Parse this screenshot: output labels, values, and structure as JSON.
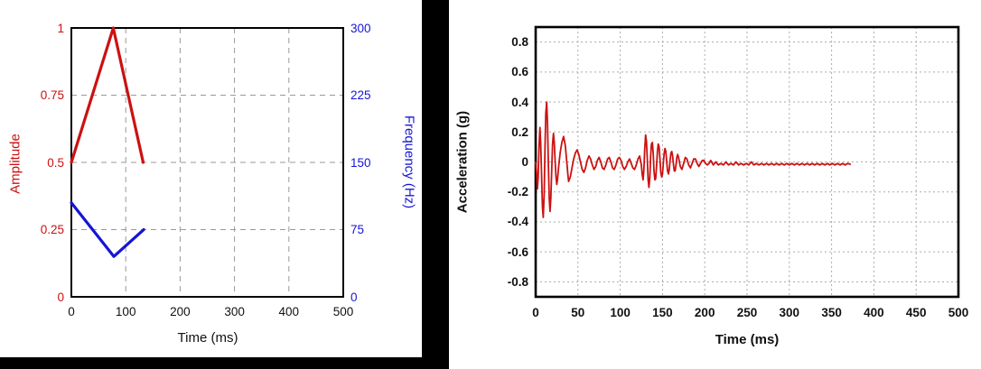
{
  "background": "#ffffff",
  "panel_frame_color": "#000000",
  "chart_data": [
    {
      "id": "sweep-definition-chart",
      "type": "line",
      "xlabel": "Time (ms)",
      "ylabel_left": "Amplitude",
      "ylabel_right": "Frequency (Hz)",
      "xlim": [
        0,
        500
      ],
      "ylim_left": [
        0,
        1
      ],
      "ylim_right": [
        0,
        300
      ],
      "grid": "dashed",
      "grid_color": "#999999",
      "axis_color_left": "#cc1111",
      "axis_color_right": "#1515d6",
      "x_tick_values": [
        0,
        100,
        200,
        300,
        400,
        500
      ],
      "x_tick_labels": [
        "0",
        "100",
        "200",
        "300",
        "400",
        "500"
      ],
      "y_left_tick_values": [
        0,
        0.25,
        0.5,
        0.75,
        1
      ],
      "y_left_tick_labels": [
        "0",
        "0.25",
        "0.5",
        "0.75",
        "1"
      ],
      "y_right_tick_values": [
        0,
        75,
        150,
        225,
        300
      ],
      "y_right_tick_labels": [
        "0",
        "75",
        "150",
        "225",
        "300"
      ],
      "series": [
        {
          "name": "amplitude",
          "axis": "left",
          "color": "#cc1111",
          "points": [
            [
              0,
              0.5
            ],
            [
              77,
              1.0
            ],
            [
              132,
              0.5
            ]
          ]
        },
        {
          "name": "frequency",
          "axis": "right",
          "color": "#1515d6",
          "points": [
            [
              0,
              105
            ],
            [
              78,
              45
            ],
            [
              133,
              75
            ]
          ]
        }
      ]
    },
    {
      "id": "acceleration-chart",
      "type": "line",
      "xlabel": "Time (ms)",
      "ylabel": "Acceleration (g)",
      "xlim": [
        0,
        500
      ],
      "ylim": [
        -0.9,
        0.9
      ],
      "grid": "dotted",
      "grid_color": "#aaaaaa",
      "x_tick_values": [
        0,
        50,
        100,
        150,
        200,
        250,
        300,
        350,
        400,
        450,
        500
      ],
      "x_tick_labels": [
        "0",
        "50",
        "100",
        "150",
        "200",
        "250",
        "300",
        "350",
        "400",
        "450",
        "500"
      ],
      "y_tick_values": [
        0.8,
        0.6,
        0.4,
        0.2,
        0,
        -0.2,
        -0.4,
        -0.6,
        -0.8
      ],
      "y_tick_labels": [
        "0.8",
        "0.6",
        "0.4",
        "0.2",
        "0",
        "-0.2",
        "-0.4",
        "-0.6",
        "-0.8"
      ],
      "series": [
        {
          "name": "acceleration",
          "color": "#cc1111",
          "points": [
            [
              0,
              0
            ],
            [
              1,
              -0.06
            ],
            [
              2,
              -0.18
            ],
            [
              3,
              -0.1
            ],
            [
              4,
              0.1
            ],
            [
              5,
              0.23
            ],
            [
              6,
              0.12
            ],
            [
              7,
              -0.1
            ],
            [
              8,
              -0.3
            ],
            [
              9,
              -0.37
            ],
            [
              10,
              -0.22
            ],
            [
              11,
              0.08
            ],
            [
              12,
              0.32
            ],
            [
              13,
              0.4
            ],
            [
              14,
              0.26
            ],
            [
              15,
              0.0
            ],
            [
              16,
              -0.24
            ],
            [
              17,
              -0.33
            ],
            [
              18,
              -0.24
            ],
            [
              19,
              -0.05
            ],
            [
              20,
              0.12
            ],
            [
              21,
              0.19
            ],
            [
              22,
              0.13
            ],
            [
              23,
              0.01
            ],
            [
              24,
              -0.1
            ],
            [
              25,
              -0.15
            ],
            [
              26,
              -0.11
            ],
            [
              27,
              -0.04
            ],
            [
              29,
              0.06
            ],
            [
              31,
              0.13
            ],
            [
              33,
              0.17
            ],
            [
              35,
              0.11
            ],
            [
              37,
              -0.01
            ],
            [
              38,
              -0.08
            ],
            [
              39,
              -0.13
            ],
            [
              41,
              -0.1
            ],
            [
              43,
              -0.04
            ],
            [
              45,
              0.02
            ],
            [
              47,
              0.06
            ],
            [
              49,
              0.08
            ],
            [
              51,
              0.05
            ],
            [
              53,
              0.0
            ],
            [
              55,
              -0.05
            ],
            [
              57,
              -0.07
            ],
            [
              59,
              -0.04
            ],
            [
              61,
              0.01
            ],
            [
              63,
              0.04
            ],
            [
              65,
              0.02
            ],
            [
              67,
              -0.02
            ],
            [
              69,
              -0.05
            ],
            [
              71,
              -0.03
            ],
            [
              73,
              0.01
            ],
            [
              75,
              0.03
            ],
            [
              77,
              0.0
            ],
            [
              79,
              -0.04
            ],
            [
              81,
              -0.05
            ],
            [
              83,
              -0.02
            ],
            [
              85,
              0.02
            ],
            [
              87,
              0.03
            ],
            [
              89,
              0.0
            ],
            [
              91,
              -0.04
            ],
            [
              93,
              -0.05
            ],
            [
              95,
              -0.02
            ],
            [
              97,
              0.02
            ],
            [
              99,
              0.03
            ],
            [
              101,
              0.01
            ],
            [
              103,
              -0.03
            ],
            [
              105,
              -0.05
            ],
            [
              107,
              -0.03
            ],
            [
              109,
              0.0
            ],
            [
              111,
              0.02
            ],
            [
              113,
              -0.01
            ],
            [
              115,
              -0.04
            ],
            [
              117,
              -0.05
            ],
            [
              119,
              -0.02
            ],
            [
              121,
              0.02
            ],
            [
              123,
              0.04
            ],
            [
              125,
              -0.02
            ],
            [
              126,
              -0.08
            ],
            [
              127,
              -0.12
            ],
            [
              128,
              -0.05
            ],
            [
              129,
              0.08
            ],
            [
              130,
              0.18
            ],
            [
              131,
              0.14
            ],
            [
              132,
              0.02
            ],
            [
              133,
              -0.12
            ],
            [
              134,
              -0.17
            ],
            [
              135,
              -0.1
            ],
            [
              136,
              0.04
            ],
            [
              137,
              0.12
            ],
            [
              138,
              0.13
            ],
            [
              139,
              0.06
            ],
            [
              140,
              -0.06
            ],
            [
              141,
              -0.12
            ],
            [
              142,
              -0.11
            ],
            [
              143,
              -0.03
            ],
            [
              144,
              0.07
            ],
            [
              145,
              0.12
            ],
            [
              146,
              0.1
            ],
            [
              147,
              0.02
            ],
            [
              148,
              -0.07
            ],
            [
              149,
              -0.1
            ],
            [
              150,
              -0.08
            ],
            [
              151,
              -0.01
            ],
            [
              152,
              0.06
            ],
            [
              153,
              0.09
            ],
            [
              154,
              0.07
            ],
            [
              155,
              0.0
            ],
            [
              156,
              -0.06
            ],
            [
              157,
              -0.08
            ],
            [
              158,
              -0.05
            ],
            [
              159,
              0.01
            ],
            [
              160,
              0.06
            ],
            [
              161,
              0.07
            ],
            [
              162,
              0.04
            ],
            [
              163,
              -0.02
            ],
            [
              164,
              -0.06
            ],
            [
              165,
              -0.06
            ],
            [
              166,
              -0.02
            ],
            [
              167,
              0.03
            ],
            [
              168,
              0.05
            ],
            [
              169,
              0.03
            ],
            [
              171,
              -0.03
            ],
            [
              173,
              -0.05
            ],
            [
              175,
              -0.01
            ],
            [
              177,
              0.03
            ],
            [
              179,
              0.02
            ],
            [
              181,
              -0.02
            ],
            [
              183,
              -0.04
            ],
            [
              185,
              -0.01
            ],
            [
              187,
              0.02
            ],
            [
              189,
              0.02
            ],
            [
              191,
              -0.01
            ],
            [
              193,
              -0.03
            ],
            [
              195,
              -0.01
            ],
            [
              197,
              0.01
            ],
            [
              199,
              0.01
            ],
            [
              201,
              -0.01
            ],
            [
              203,
              -0.02
            ],
            [
              205,
              -0.01
            ],
            [
              207,
              0.01
            ],
            [
              210,
              -0.02
            ],
            [
              213,
              0.0
            ],
            [
              216,
              -0.02
            ],
            [
              219,
              -0.01
            ],
            [
              222,
              -0.02
            ],
            [
              225,
              0.0
            ],
            [
              228,
              -0.02
            ],
            [
              231,
              -0.01
            ],
            [
              234,
              -0.02
            ],
            [
              237,
              0.0
            ],
            [
              240,
              -0.02
            ],
            [
              243,
              -0.01
            ],
            [
              246,
              -0.02
            ],
            [
              249,
              -0.01
            ],
            [
              252,
              -0.02
            ],
            [
              255,
              0.0
            ],
            [
              258,
              -0.02
            ],
            [
              261,
              -0.01
            ],
            [
              264,
              -0.02
            ],
            [
              267,
              -0.01
            ],
            [
              270,
              -0.02
            ],
            [
              273,
              -0.01
            ],
            [
              276,
              -0.02
            ],
            [
              279,
              -0.01
            ],
            [
              282,
              -0.02
            ],
            [
              285,
              -0.01
            ],
            [
              288,
              -0.02
            ],
            [
              291,
              -0.01
            ],
            [
              294,
              -0.02
            ],
            [
              297,
              -0.01
            ],
            [
              300,
              -0.02
            ],
            [
              303,
              -0.01
            ],
            [
              306,
              -0.02
            ],
            [
              309,
              -0.01
            ],
            [
              312,
              -0.02
            ],
            [
              315,
              -0.01
            ],
            [
              318,
              -0.02
            ],
            [
              321,
              -0.01
            ],
            [
              324,
              -0.02
            ],
            [
              327,
              -0.01
            ],
            [
              330,
              -0.02
            ],
            [
              333,
              -0.01
            ],
            [
              336,
              -0.02
            ],
            [
              339,
              -0.01
            ],
            [
              342,
              -0.02
            ],
            [
              345,
              -0.01
            ],
            [
              348,
              -0.02
            ],
            [
              351,
              -0.01
            ],
            [
              354,
              -0.02
            ],
            [
              357,
              -0.01
            ],
            [
              360,
              -0.02
            ],
            [
              363,
              -0.01
            ],
            [
              366,
              -0.02
            ],
            [
              369,
              -0.01
            ],
            [
              372,
              -0.015
            ]
          ]
        }
      ]
    }
  ]
}
